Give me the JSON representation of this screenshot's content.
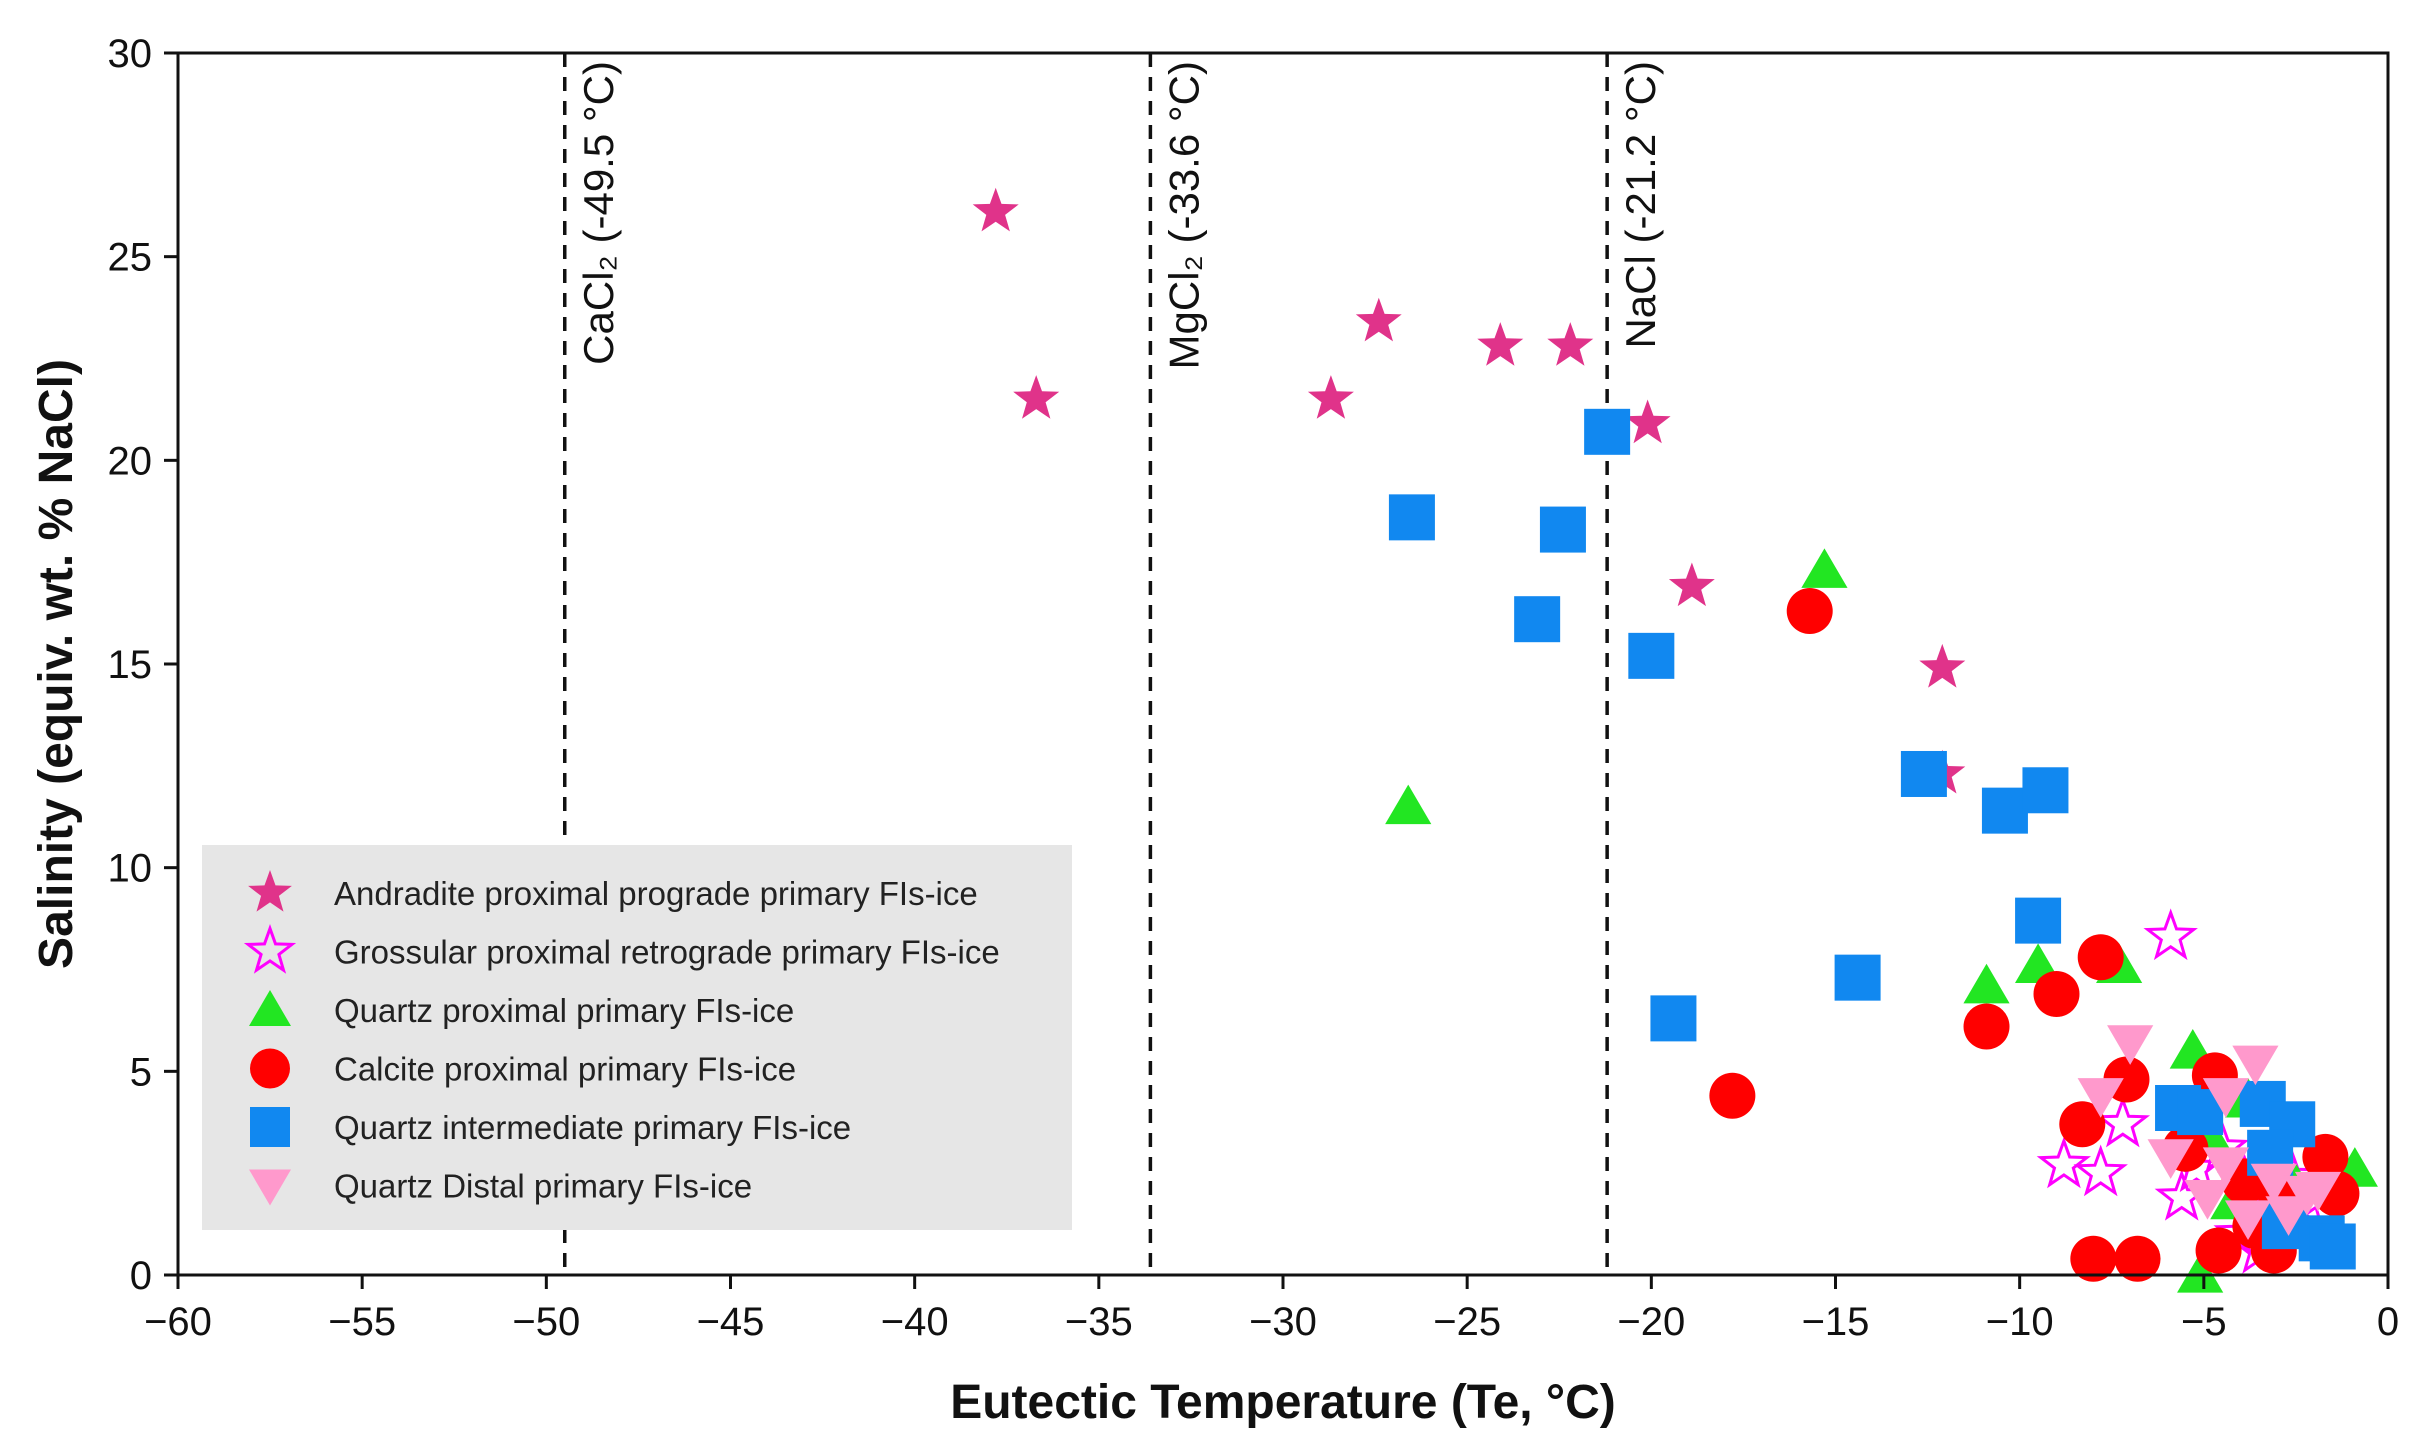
{
  "chart_data": {
    "type": "scatter",
    "xlabel": "Eutectic Temperature (Te,  °C)",
    "ylabel": "Salinity (equiv. wt. % NaCl)",
    "xlim": [
      -60,
      0
    ],
    "ylim": [
      0,
      30
    ],
    "xticks": [
      -60,
      -55,
      -50,
      -45,
      -40,
      -35,
      -30,
      -25,
      -20,
      -15,
      -10,
      -5,
      0
    ],
    "yticks": [
      0,
      5,
      10,
      15,
      20,
      25,
      30
    ],
    "xtick_labels": [
      "−60",
      "−55",
      "−50",
      "−45",
      "−40",
      "−35",
      "−30",
      "−25",
      "−20",
      "−15",
      "−10",
      "−5",
      "0"
    ],
    "ytick_labels": [
      "0",
      "5",
      "10",
      "15",
      "20",
      "25",
      "30"
    ],
    "grid": false,
    "legend_position": "bottom-left",
    "reference_lines": [
      {
        "x": -49.5,
        "label": "CaCl₂ (-49.5 °C)"
      },
      {
        "x": -33.6,
        "label": "MgCl₂ (-33.6 °C)"
      },
      {
        "x": -21.2,
        "label": "NaCl (-21.2 °C)"
      }
    ],
    "series": [
      {
        "name": "Andradite proximal prograde primary FIs-ice",
        "marker": "star",
        "color": "#e0338a",
        "points": [
          [
            -37.8,
            26.1
          ],
          [
            -36.7,
            21.5
          ],
          [
            -28.7,
            21.5
          ],
          [
            -27.4,
            23.4
          ],
          [
            -24.1,
            22.8
          ],
          [
            -22.2,
            22.8
          ],
          [
            -20.1,
            20.9
          ],
          [
            -18.9,
            16.9
          ],
          [
            -12.1,
            14.9
          ],
          [
            -12.1,
            12.3
          ]
        ]
      },
      {
        "name": "Grossular proximal retrograde primary FIs-ice",
        "marker": "star-open",
        "color": "#ff00ff",
        "points": [
          [
            -5.9,
            8.3
          ],
          [
            -8.8,
            2.7
          ],
          [
            -7.8,
            2.5
          ],
          [
            -7.2,
            3.7
          ],
          [
            -5.6,
            1.9
          ],
          [
            -5.2,
            2.6
          ],
          [
            -4.5,
            3.1
          ],
          [
            -3.9,
            2.3
          ],
          [
            -3.4,
            1.8
          ],
          [
            -3.0,
            3.3
          ],
          [
            -2.6,
            2.4
          ],
          [
            -2.2,
            1.7
          ],
          [
            -1.8,
            2.0
          ],
          [
            -4.0,
            1.0
          ],
          [
            -3.5,
            0.6
          ]
        ]
      },
      {
        "name": "Quartz proximal primary FIs-ice",
        "marker": "triangle-up",
        "color": "#22e622",
        "points": [
          [
            -26.6,
            11.5
          ],
          [
            -15.3,
            17.3
          ],
          [
            -10.9,
            7.1
          ],
          [
            -9.5,
            7.6
          ],
          [
            -7.3,
            7.6
          ],
          [
            -5.3,
            5.5
          ],
          [
            -4.6,
            4.6
          ],
          [
            -4.9,
            3.5
          ],
          [
            -4.2,
            1.8
          ],
          [
            -3.8,
            4.3
          ],
          [
            -2.5,
            2.2
          ],
          [
            -0.9,
            2.6
          ],
          [
            -5.1,
            0.0
          ],
          [
            -3.3,
            1.2
          ]
        ]
      },
      {
        "name": "Calcite proximal primary FIs-ice",
        "marker": "circle",
        "color": "#ff0000",
        "points": [
          [
            -15.7,
            16.3
          ],
          [
            -17.8,
            4.4
          ],
          [
            -10.9,
            6.1
          ],
          [
            -9.0,
            6.9
          ],
          [
            -7.8,
            7.8
          ],
          [
            -7.1,
            4.8
          ],
          [
            -8.3,
            3.7
          ],
          [
            -5.5,
            3.1
          ],
          [
            -4.7,
            4.9
          ],
          [
            -3.9,
            2.3
          ],
          [
            -3.6,
            1.2
          ],
          [
            -2.9,
            1.9
          ],
          [
            -1.7,
            2.9
          ],
          [
            -1.4,
            2.0
          ],
          [
            -8.0,
            0.4
          ],
          [
            -6.8,
            0.4
          ],
          [
            -4.6,
            0.6
          ],
          [
            -3.1,
            0.6
          ]
        ]
      },
      {
        "name": "Quartz intermediate primary FIs-ice",
        "marker": "square",
        "color": "#1188f0",
        "points": [
          [
            -21.2,
            20.7
          ],
          [
            -26.5,
            18.6
          ],
          [
            -22.4,
            18.3
          ],
          [
            -23.1,
            16.1
          ],
          [
            -20.0,
            15.2
          ],
          [
            -12.6,
            12.3
          ],
          [
            -10.4,
            11.4
          ],
          [
            -9.3,
            11.9
          ],
          [
            -9.5,
            8.7
          ],
          [
            -14.4,
            7.3
          ],
          [
            -19.4,
            6.3
          ],
          [
            -5.7,
            4.1
          ],
          [
            -5.1,
            4.0
          ],
          [
            -3.4,
            4.2
          ],
          [
            -2.6,
            3.7
          ],
          [
            -3.2,
            3.0
          ],
          [
            -2.8,
            1.2
          ],
          [
            -1.8,
            0.9
          ],
          [
            -1.5,
            0.7
          ]
        ]
      },
      {
        "name": "Quartz Distal primary FIs-ice",
        "marker": "triangle-down",
        "color": "#ff99cc",
        "points": [
          [
            -7.0,
            5.7
          ],
          [
            -7.8,
            4.4
          ],
          [
            -4.4,
            4.4
          ],
          [
            -3.6,
            5.2
          ],
          [
            -5.9,
            2.9
          ],
          [
            -4.9,
            1.9
          ],
          [
            -4.4,
            2.7
          ],
          [
            -3.1,
            2.3
          ],
          [
            -2.2,
            2.0
          ],
          [
            -1.9,
            2.1
          ],
          [
            -2.7,
            1.5
          ],
          [
            -3.8,
            1.4
          ]
        ]
      }
    ]
  }
}
